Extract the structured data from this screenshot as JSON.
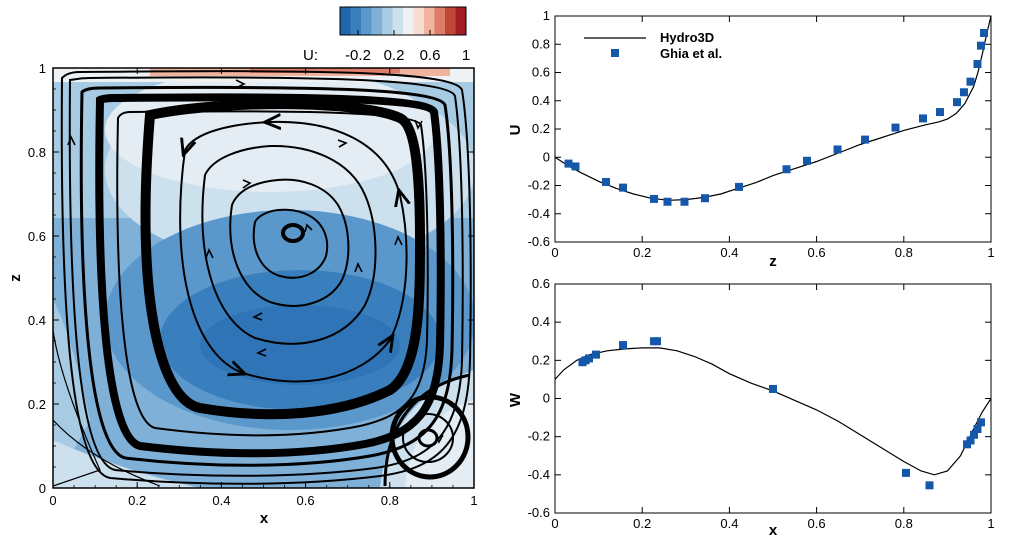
{
  "colors": {
    "contour_levels": [
      "#2166ac",
      "#3a7fbd",
      "#5a97cb",
      "#7fb0d8",
      "#a7cbe3",
      "#cde0ee",
      "#eef2f5",
      "#f8ddd3",
      "#f0b49e",
      "#dd7d68",
      "#c0463a",
      "#a31d24"
    ],
    "marker": "#1557a8",
    "line": "#000000"
  },
  "chart_data": [
    {
      "type": "heatmap",
      "description_type": "contour with streamlines",
      "xlabel": "x",
      "ylabel": "z",
      "xlim": [
        0,
        1
      ],
      "ylim": [
        0,
        1
      ],
      "xticks": [
        "0",
        "0.2",
        "0.4",
        "0.6",
        "0.8",
        "1"
      ],
      "yticks": [
        "0",
        "0.2",
        "0.4",
        "0.6",
        "0.8",
        "1"
      ],
      "colorbar": {
        "label": "U:",
        "ticks": [
          "-0.2",
          "0.2",
          "0.6",
          "1"
        ],
        "range": [
          -0.4,
          1.0
        ]
      },
      "primary_vortex_center": [
        0.56,
        0.6
      ],
      "secondary_vortex_center": [
        0.89,
        0.12
      ]
    },
    {
      "type": "line",
      "xlabel": "z",
      "ylabel": "U",
      "xlim": [
        0,
        1
      ],
      "ylim": [
        -0.6,
        1
      ],
      "xticks": [
        "0",
        "0.2",
        "0.4",
        "0.6",
        "0.8",
        "1"
      ],
      "yticks": [
        "-0.6",
        "-0.4",
        "-0.2",
        "0",
        "0.2",
        "0.4",
        "0.6",
        "0.8",
        "1"
      ],
      "legend_position": "top-left",
      "series": [
        {
          "name": "Hydro3D",
          "style": "line",
          "x": [
            0,
            0.03,
            0.06,
            0.1,
            0.14,
            0.18,
            0.22,
            0.26,
            0.3,
            0.34,
            0.38,
            0.42,
            0.46,
            0.5,
            0.55,
            0.6,
            0.65,
            0.7,
            0.75,
            0.8,
            0.85,
            0.88,
            0.9,
            0.92,
            0.94,
            0.96,
            0.97,
            0.98,
            0.99,
            1.0
          ],
          "y": [
            0,
            -0.06,
            -0.11,
            -0.17,
            -0.22,
            -0.26,
            -0.29,
            -0.305,
            -0.3,
            -0.285,
            -0.26,
            -0.22,
            -0.18,
            -0.13,
            -0.08,
            -0.03,
            0.03,
            0.09,
            0.14,
            0.19,
            0.23,
            0.25,
            0.27,
            0.31,
            0.38,
            0.5,
            0.6,
            0.73,
            0.87,
            1.0
          ]
        },
        {
          "name": "Ghia et al.",
          "style": "marker",
          "x": [
            0.031,
            0.047,
            0.117,
            0.156,
            0.227,
            0.258,
            0.297,
            0.344,
            0.422,
            0.531,
            0.578,
            0.648,
            0.711,
            0.781,
            0.844,
            0.883,
            0.922,
            0.938,
            0.953,
            0.969,
            0.977,
            0.984
          ],
          "y": [
            -0.045,
            -0.065,
            -0.175,
            -0.215,
            -0.295,
            -0.315,
            -0.315,
            -0.29,
            -0.21,
            -0.085,
            -0.025,
            0.055,
            0.125,
            0.21,
            0.275,
            0.32,
            0.39,
            0.46,
            0.535,
            0.66,
            0.79,
            0.88
          ]
        }
      ]
    },
    {
      "type": "line",
      "xlabel": "x",
      "ylabel": "W",
      "xlim": [
        0,
        1
      ],
      "ylim": [
        -0.6,
        0.6
      ],
      "xticks": [
        "0",
        "0.2",
        "0.4",
        "0.6",
        "0.8",
        "1"
      ],
      "yticks": [
        "-0.6",
        "-0.4",
        "-0.2",
        "0",
        "0.2",
        "0.4",
        "0.6"
      ],
      "series": [
        {
          "name": "Hydro3D",
          "style": "line",
          "x": [
            0,
            0.02,
            0.05,
            0.08,
            0.12,
            0.16,
            0.2,
            0.24,
            0.28,
            0.32,
            0.36,
            0.4,
            0.45,
            0.5,
            0.55,
            0.6,
            0.65,
            0.7,
            0.75,
            0.8,
            0.84,
            0.87,
            0.9,
            0.93,
            0.96,
            0.98,
            1.0
          ],
          "y": [
            0.1,
            0.15,
            0.2,
            0.23,
            0.25,
            0.26,
            0.265,
            0.265,
            0.25,
            0.22,
            0.18,
            0.13,
            0.08,
            0.04,
            -0.01,
            -0.06,
            -0.12,
            -0.19,
            -0.26,
            -0.33,
            -0.38,
            -0.4,
            -0.38,
            -0.3,
            -0.16,
            -0.07,
            0.0
          ]
        },
        {
          "name": "Ghia et al.",
          "style": "marker",
          "x": [
            0.063,
            0.07,
            0.078,
            0.094,
            0.156,
            0.227,
            0.234,
            0.5,
            0.805,
            0.859,
            0.945,
            0.953,
            0.961,
            0.969,
            0.977
          ],
          "y": [
            0.19,
            0.2,
            0.21,
            0.23,
            0.28,
            0.3,
            0.3,
            0.05,
            -0.39,
            -0.455,
            -0.24,
            -0.22,
            -0.19,
            -0.16,
            -0.125
          ]
        }
      ]
    }
  ]
}
